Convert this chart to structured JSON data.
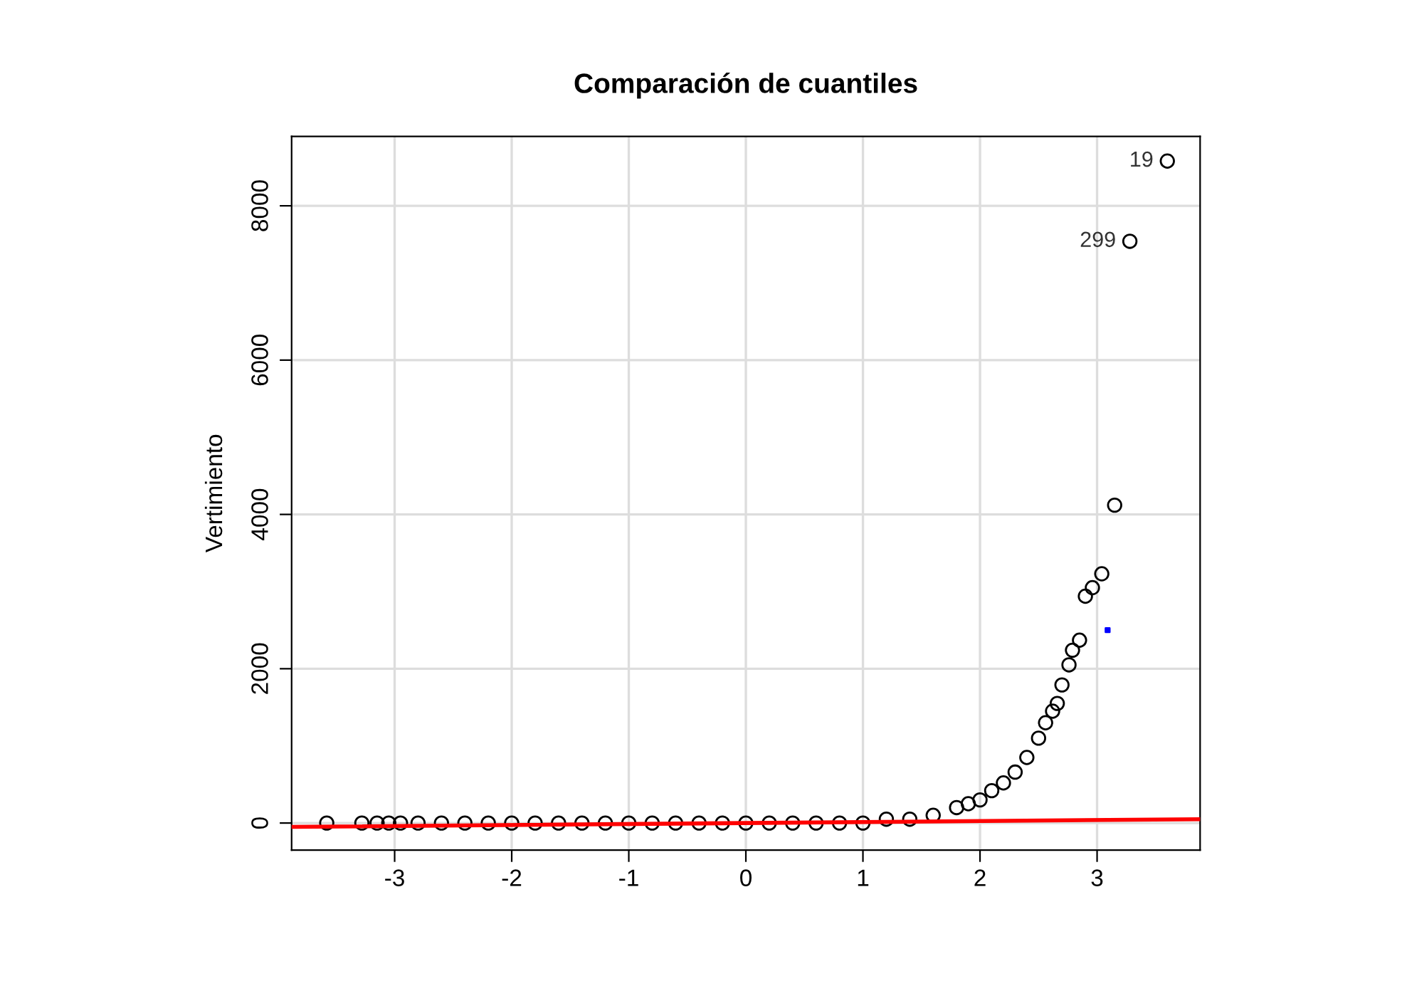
{
  "chart_data": {
    "type": "scatter",
    "title": "Comparación de cuantiles",
    "ylabel": "Vertimiento",
    "xlim": [
      -3.88,
      3.88
    ],
    "ylim": [
      -350,
      8900
    ],
    "xticks": [
      -3,
      -2,
      -1,
      0,
      1,
      2,
      3
    ],
    "yticks": [
      0,
      2000,
      4000,
      6000,
      8000
    ],
    "grid": true,
    "legend": false,
    "series": [
      {
        "marker": "circle",
        "color": "#000000",
        "x": [
          -3.58,
          -3.28,
          -3.15,
          -3.05,
          -2.95,
          -2.8,
          -2.6,
          -2.4,
          -2.2,
          -2.0,
          -1.8,
          -1.6,
          -1.4,
          -1.2,
          -1.0,
          -0.8,
          -0.6,
          -0.4,
          -0.2,
          0,
          0.2,
          0.4,
          0.6,
          0.8,
          1.0,
          1.2,
          1.4,
          1.6,
          1.8,
          1.9,
          2.0,
          2.1,
          2.2,
          2.3,
          2.4,
          2.5,
          2.56,
          2.62,
          2.66,
          2.7,
          2.76,
          2.79,
          2.85,
          2.9,
          2.96,
          3.04,
          3.15,
          3.28,
          3.6
        ],
        "values": [
          0,
          0,
          0,
          0,
          0,
          0,
          0,
          0,
          0,
          0,
          0,
          0,
          0,
          0,
          0,
          0,
          0,
          0,
          0,
          0,
          0,
          0,
          0,
          0,
          0,
          50,
          50,
          100,
          200,
          250,
          300,
          420,
          520,
          660,
          850,
          1100,
          1300,
          1450,
          1550,
          1790,
          2050,
          2240,
          2370,
          2940,
          3050,
          3230,
          4120,
          7540,
          8580
        ]
      },
      {
        "type": "line",
        "marker": "none",
        "line_style": "solid",
        "color": "#ff0000",
        "x": [
          -3.88,
          3.88
        ],
        "values": [
          -50,
          50
        ]
      },
      {
        "type": "scatter",
        "marker": "square",
        "color": "#0000ff",
        "x": [
          3.09
        ],
        "values": [
          2500
        ]
      }
    ],
    "annotations": [
      {
        "text": "19",
        "x": 3.6,
        "y": 8580
      },
      {
        "text": "299",
        "x": 3.28,
        "y": 7540
      }
    ]
  }
}
